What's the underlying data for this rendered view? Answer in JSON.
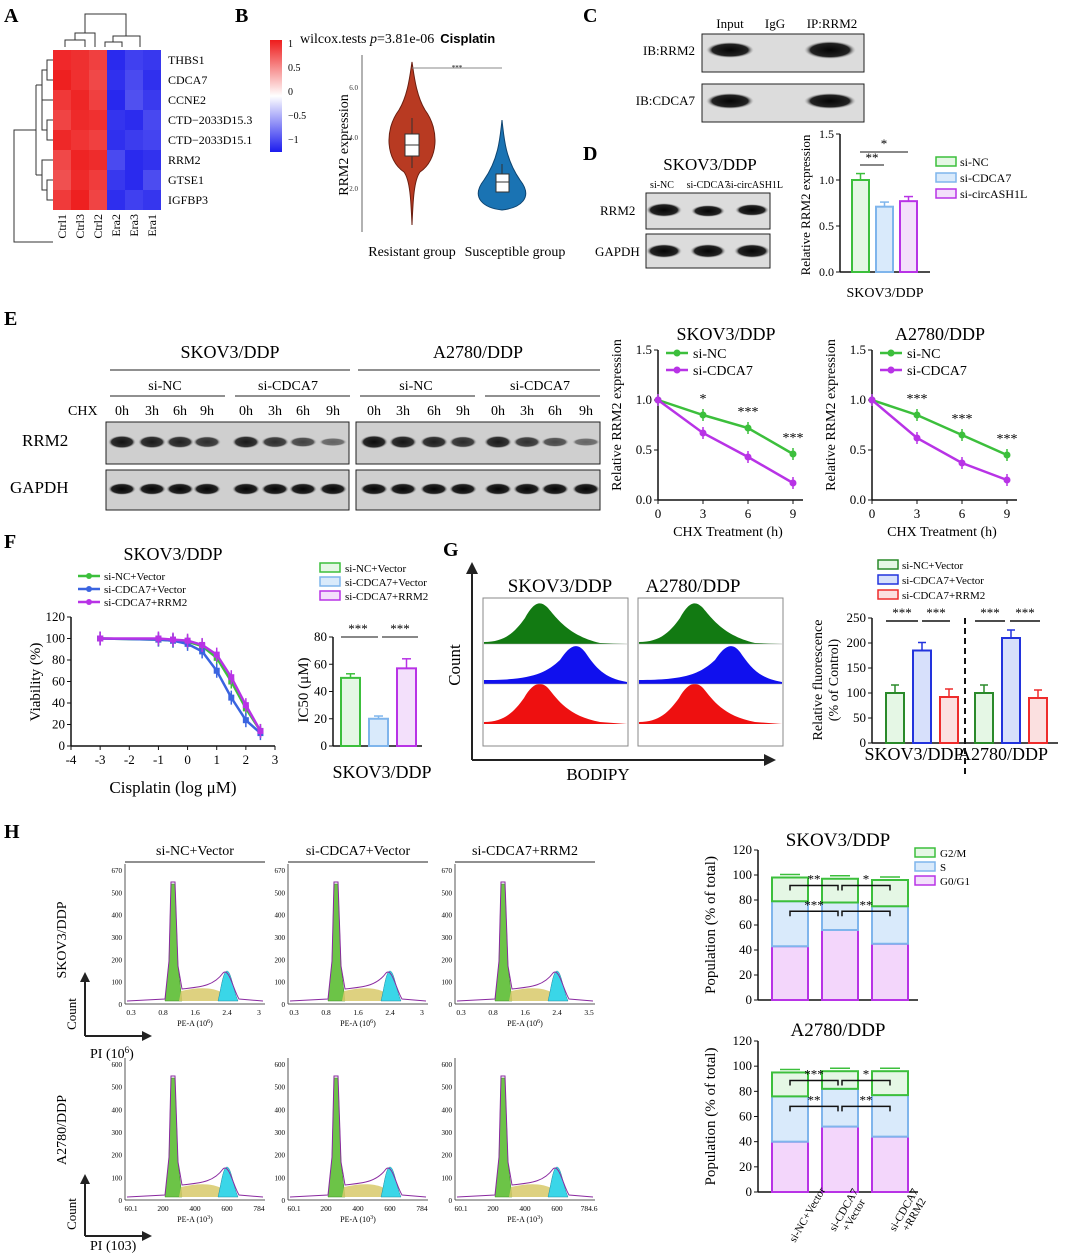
{
  "panel_letters": {
    "A": "A",
    "B": "B",
    "C": "C",
    "D": "D",
    "E": "E",
    "F": "F",
    "G": "G",
    "H": "H"
  },
  "colors": {
    "green": "#3cbf3c",
    "purple": "#b833e6",
    "blue": "#3a64e0",
    "light_blue": "#7fb5ec",
    "red": "#ee2c2c",
    "blot_dark": "#1b1b1b",
    "blot_bg": "#d0d0d0",
    "heat_red": "#ee2c2c",
    "heat_blue": "#2222ee"
  },
  "panelA": {
    "genes": [
      "THBS1",
      "CDCA7",
      "CCNE2",
      "CTD−2033D15.3",
      "CTD−2033D15.1",
      "RRM2",
      "GTSE1",
      "IGFBP3"
    ],
    "samples": [
      "Ctrl1",
      "Ctrl3",
      "Ctrl2",
      "Era2",
      "Era3",
      "Era1"
    ],
    "colorbar_ticks": [
      "1",
      "0.5",
      "0",
      "−0.5",
      "−1"
    ]
  },
  "panelB": {
    "title_prefix": "wilcox.tests ",
    "title_p": "p",
    "title_eq": "=3.81e-06",
    "title_drug": "Cisplatin",
    "ylabel": "RRM2 expression",
    "yticks": [
      "6.0",
      "4.0",
      "2.0"
    ],
    "sig": "***",
    "groups": [
      "Resistant group",
      "Susceptible group"
    ]
  },
  "panelC": {
    "lanes": [
      "Input",
      "IgG",
      "IP:RRM2"
    ],
    "rows": [
      "IB:RRM2",
      "IB:CDCA7"
    ]
  },
  "panelD": {
    "cell": "SKOV3/DDP",
    "lanes": [
      "si-NC",
      "si-CDCA7",
      "si-circASH1L"
    ],
    "rows": [
      "RRM2",
      "GAPDH"
    ]
  },
  "chart_data": [
    {
      "id": "D_bar",
      "type": "bar",
      "title": "",
      "xlabel": "SKOV3/DDP",
      "ylabel": "Relative RRM2 expression",
      "ylim": [
        0,
        1.5
      ],
      "yticks": [
        "0.0",
        "0.5",
        "1.0",
        "1.5"
      ],
      "categories": [
        "si-NC",
        "si-CDCA7",
        "si-circASH1L"
      ],
      "values": [
        1.0,
        0.71,
        0.77
      ],
      "errors": [
        0.07,
        0.05,
        0.05
      ],
      "sig": [
        "*",
        "**"
      ]
    },
    {
      "id": "E_skov",
      "type": "line",
      "title": "SKOV3/DDP",
      "xlabel": "CHX Treatment (h)",
      "ylabel": "Relative RRM2 expression",
      "x": [
        0,
        3,
        6,
        9
      ],
      "xticks": [
        "0",
        "3",
        "6",
        "9"
      ],
      "ylim": [
        0,
        1.5
      ],
      "yticks": [
        "0.0",
        "0.5",
        "1.0",
        "1.5"
      ],
      "series": [
        {
          "name": "si-NC",
          "values": [
            1.0,
            0.85,
            0.72,
            0.46
          ]
        },
        {
          "name": "si-CDCA7",
          "values": [
            1.0,
            0.67,
            0.43,
            0.17
          ]
        }
      ],
      "sig": [
        "*",
        "***",
        "***"
      ]
    },
    {
      "id": "E_a2780",
      "type": "line",
      "title": "A2780/DDP",
      "xlabel": "CHX Treatment (h)",
      "ylabel": "Relative RRM2 expression",
      "x": [
        0,
        3,
        6,
        9
      ],
      "xticks": [
        "0",
        "3",
        "6",
        "9"
      ],
      "ylim": [
        0,
        1.5
      ],
      "yticks": [
        "0.0",
        "0.5",
        "1.0",
        "1.5"
      ],
      "series": [
        {
          "name": "si-NC",
          "values": [
            1.0,
            0.85,
            0.65,
            0.45
          ]
        },
        {
          "name": "si-CDCA7",
          "values": [
            1.0,
            0.62,
            0.37,
            0.2
          ]
        }
      ],
      "sig": [
        "***",
        "***",
        "***"
      ]
    },
    {
      "id": "F_curve",
      "type": "line",
      "title": "SKOV3/DDP",
      "xlabel": "Cisplatin (log μM)",
      "ylabel": "Viability (%)",
      "x": [
        -3,
        -1,
        -0.5,
        0,
        0.5,
        1,
        1.5,
        2,
        2.5
      ],
      "xticks": [
        "-4",
        "-3",
        "-2",
        "-1",
        "0",
        "1",
        "2",
        "3"
      ],
      "xlim": [
        -4,
        3
      ],
      "ylim": [
        0,
        120
      ],
      "yticks": [
        "0",
        "20",
        "40",
        "60",
        "80",
        "100",
        "120"
      ],
      "series": [
        {
          "name": "si-NC+Vector",
          "values": [
            100,
            99,
            98,
            97,
            93,
            82,
            60,
            35,
            14
          ]
        },
        {
          "name": "si-CDCA7+Vector",
          "values": [
            100,
            99,
            98,
            95,
            88,
            70,
            45,
            24,
            12
          ]
        },
        {
          "name": "si-CDCA7+RRM2",
          "values": [
            100,
            100,
            99,
            98,
            94,
            85,
            64,
            38,
            14
          ]
        }
      ]
    },
    {
      "id": "F_bar",
      "type": "bar",
      "title": "",
      "xlabel": "SKOV3/DDP",
      "ylabel": "IC50 (μM)",
      "ylim": [
        0,
        80
      ],
      "yticks": [
        "0",
        "20",
        "40",
        "60",
        "80"
      ],
      "categories": [
        "si-NC+Vector",
        "si-CDCA7+Vector",
        "si-CDCA7+RRM2"
      ],
      "values": [
        50,
        20,
        57
      ],
      "errors": [
        3,
        2,
        7
      ],
      "sig": [
        "***",
        "***"
      ]
    },
    {
      "id": "G_bar",
      "type": "bar",
      "title": "",
      "xlabel": "",
      "ylabel": "Relative fluorescence (% of Control)",
      "ylim": [
        0,
        250
      ],
      "yticks": [
        "0",
        "50",
        "100",
        "150",
        "200",
        "250"
      ],
      "groups": [
        "SKOV3/DDP",
        "A2780/DDP"
      ],
      "series": [
        {
          "name": "si-NC+Vector",
          "values": [
            100,
            100
          ]
        },
        {
          "name": "si-CDCA7+Vector",
          "values": [
            185,
            210
          ]
        },
        {
          "name": "si-CDCA7+RRM2",
          "values": [
            92,
            90
          ]
        }
      ],
      "sig": [
        "***",
        "***",
        "***",
        "***"
      ]
    },
    {
      "id": "H_skov",
      "type": "bar",
      "title": "SKOV3/DDP",
      "xlabel": "",
      "ylabel": "Population (% of total)",
      "ylim": [
        0,
        120
      ],
      "yticks": [
        "0",
        "20",
        "40",
        "60",
        "80",
        "100",
        "120"
      ],
      "categories": [
        "si-NC+Vector",
        "si-CDCA7+Vector",
        "si-CDCA7+RRM2"
      ],
      "series": [
        {
          "name": "G0/G1",
          "values": [
            43,
            56,
            45
          ]
        },
        {
          "name": "S",
          "values": [
            36,
            22,
            30
          ]
        },
        {
          "name": "G2/M",
          "values": [
            19,
            19,
            21
          ]
        }
      ],
      "sig": [
        "**",
        "*",
        "***",
        "**"
      ]
    },
    {
      "id": "H_a2780",
      "type": "bar",
      "title": "A2780/DDP",
      "xlabel": "",
      "ylabel": "Population (% of total)",
      "ylim": [
        0,
        120
      ],
      "yticks": [
        "0",
        "20",
        "40",
        "60",
        "80",
        "100",
        "120"
      ],
      "categories": [
        "si-NC+Vector",
        "si-CDCA7+Vector",
        "si-CDCA7+RRM2"
      ],
      "series": [
        {
          "name": "G0/G1",
          "values": [
            40,
            52,
            44
          ]
        },
        {
          "name": "S",
          "values": [
            36,
            30,
            33
          ]
        },
        {
          "name": "G2/M",
          "values": [
            19,
            14,
            19
          ]
        }
      ],
      "sig": [
        "***",
        "*",
        "**",
        "**"
      ]
    }
  ],
  "panelE": {
    "cells": [
      "SKOV3/DDP",
      "A2780/DDP"
    ],
    "groups": [
      "si-NC",
      "si-CDCA7"
    ],
    "chx_label": "CHX",
    "times": [
      "0h",
      "3h",
      "6h",
      "9h"
    ],
    "rows": [
      "RRM2",
      "GAPDH"
    ],
    "legend": [
      "si-NC",
      "si-CDCA7"
    ]
  },
  "panelD_legend": [
    "si-NC",
    "si-CDCA7",
    "si-circASH1L"
  ],
  "panelF": {
    "legend": [
      "si-NC+Vector",
      "si-CDCA7+Vector",
      "si-CDCA7+RRM2"
    ]
  },
  "panelG": {
    "cells": [
      "SKOV3/DDP",
      "A2780/DDP"
    ],
    "ylabel": "Count",
    "xlabel": "BODIPY",
    "legend": [
      "si-NC+Vector",
      "si-CDCA7+Vector",
      "si-CDCA7+RRM2"
    ],
    "group_labels": [
      "SKOV3/DDP",
      "A2780/DDP"
    ],
    "ylabel_bar1": "Relative  fluorescence",
    "ylabel_bar2": "(% of Control)"
  },
  "panelH": {
    "columns": [
      "si-NC+Vector",
      "si-CDCA7+Vector",
      "si-CDCA7+RRM2"
    ],
    "row_labels": [
      "SKOV3/DDP",
      "A2780/DDP"
    ],
    "count_label": "Count",
    "pi_top": "PI (10",
    "pi_top_sup": "6",
    "pi_top_end": ")",
    "pi_bottom": "PI (103)",
    "axis_skov_x": [
      "0.3",
      "0.8",
      "1.6",
      "2.4",
      "3"
    ],
    "axis_skov_x2": [
      "0.3",
      "0.8",
      "1.6",
      "2.4",
      "3.5"
    ],
    "axis_a_x": [
      "60.1",
      "200",
      "400",
      "600",
      "784"
    ],
    "axis_a_x3": [
      "60.1",
      "200",
      "400",
      "600",
      "784.6"
    ],
    "axis_skov_y": [
      "0",
      "100",
      "200",
      "300",
      "400",
      "500",
      "670"
    ],
    "axis_a_y": [
      "0",
      "100",
      "200",
      "300",
      "400",
      "500",
      "600"
    ],
    "pea_skov": "PE-A (10",
    "pea_skov_sup": "6",
    "pea_a_sup": "3",
    "pea_end": ")",
    "legend": [
      "G2/M",
      "S",
      "G0/G1"
    ],
    "bar_x_labels": [
      "si-NC+Vector",
      "si-CDCA7",
      "+Vector",
      "si-CDCA7",
      "+RRM2"
    ]
  }
}
